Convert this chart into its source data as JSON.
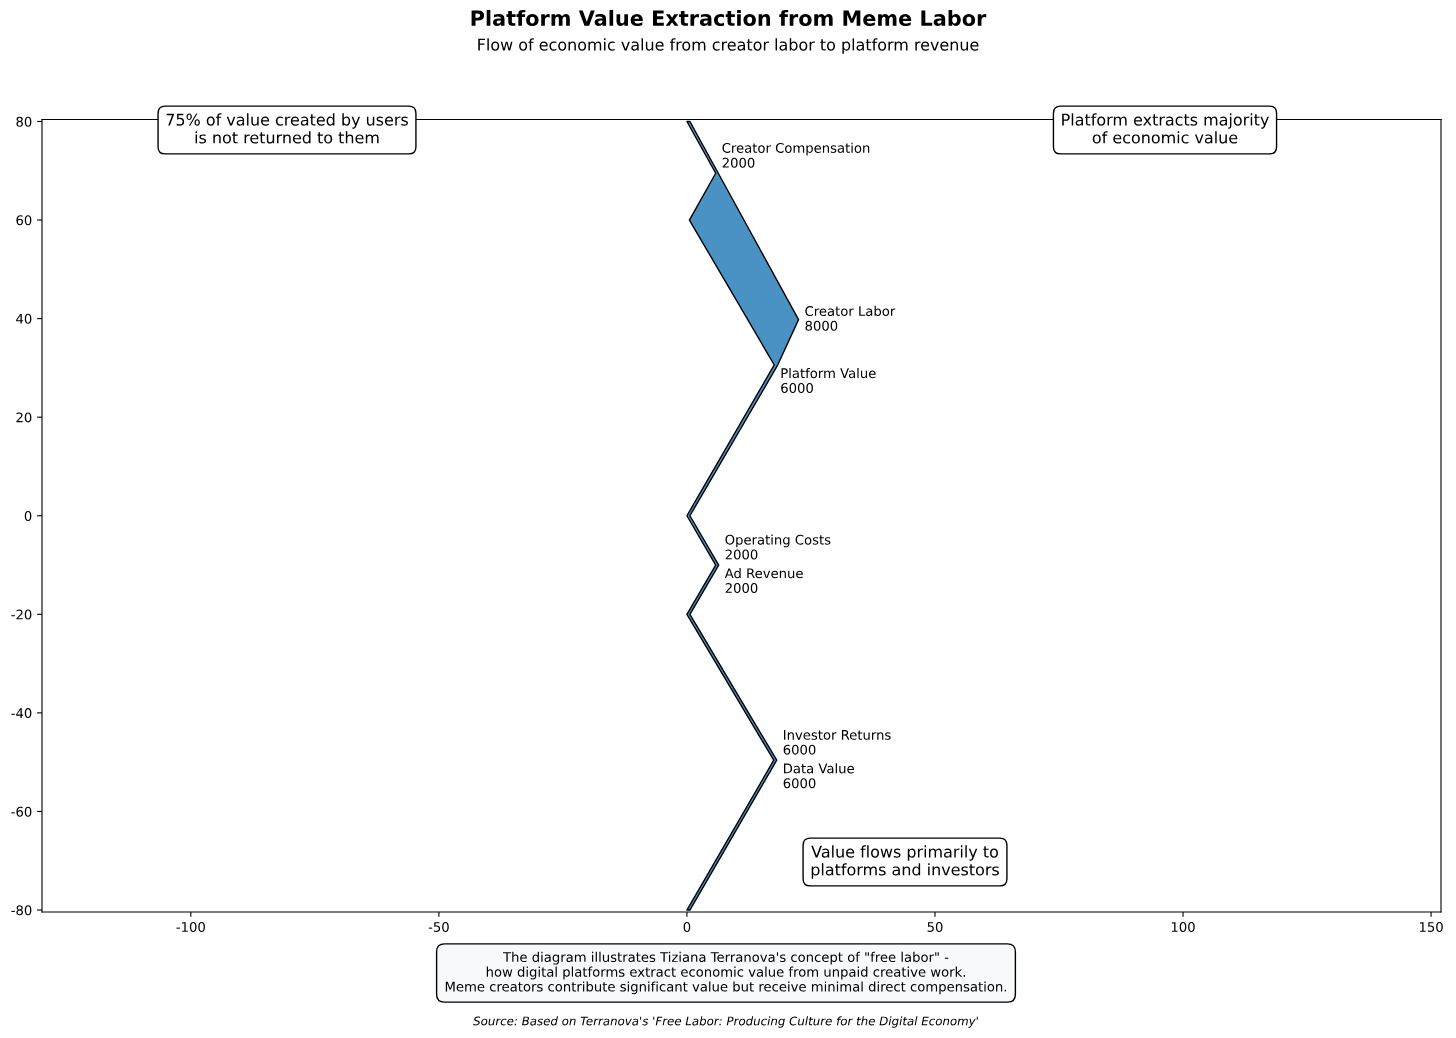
{
  "chart_data": {
    "type": "area",
    "title": "Platform Value Extraction from Meme Labor",
    "subtitle": "Flow of economic value from creator labor to platform revenue",
    "x": [
      0,
      5.8,
      0.5,
      17.6,
      0,
      5.8,
      0,
      17.5,
      0,
      0.6,
      18.1,
      0.6,
      6.4,
      0.6,
      18.2,
      22.5,
      0.6
    ],
    "values": [
      80,
      69.5,
      60,
      30.6,
      0,
      -10,
      -20,
      -49.6,
      -80,
      -80,
      -49.6,
      -20,
      -10,
      0,
      30.4,
      39.8,
      80
    ],
    "color": "#4a91c4",
    "xlim": [
      -130,
      152
    ],
    "ylim": [
      -80.4,
      80.4
    ],
    "xticks": [
      -100,
      -50,
      0,
      50,
      100,
      150
    ],
    "yticks": [
      -80,
      -60,
      -40,
      -20,
      0,
      20,
      40,
      60,
      80
    ],
    "annotations": [
      "75% of value created by users\nis not returned to them",
      "Platform extracts majority\nof economic value",
      {
        "text": "Creator Compensation\n2000",
        "x": 5.8,
        "y": 69.5
      },
      {
        "text": "Creator Labor\n8000",
        "x": 22.5,
        "y": 39.8
      },
      {
        "text": "Platform Value\n6000",
        "x": 17.6,
        "y": 30.6
      },
      {
        "text": "Operating Costs\n2000",
        "x": 5.8,
        "y": -10
      },
      {
        "text": "Ad Revenue\n2000",
        "x": 6.4,
        "y": -10
      },
      {
        "text": "Investor Returns\n6000",
        "x": 17.5,
        "y": -49.6
      },
      {
        "text": "Data Value\n6000",
        "x": 18.1,
        "y": -49.6
      },
      "Value flows primarily to\nplatforms and investors",
      "The diagram illustrates Tiziana Terranova's concept of \"free labor\" -\nhow digital platforms extract economic value from unpaid creative work.\nMeme creators contribute significant value but receive minimal direct compensation.",
      "Source: Based on Terranova's 'Free Labor: Producing Culture for the Digital Economy'"
    ]
  }
}
